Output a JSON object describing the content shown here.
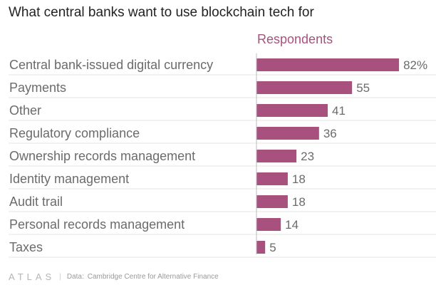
{
  "title": "What central banks want to use blockchain tech for",
  "chart_data": {
    "type": "bar",
    "orientation": "horizontal",
    "series_label": "Respondents",
    "categories": [
      "Central bank-issued digital currency",
      "Payments",
      "Other",
      "Regulatory compliance",
      "Ownership records management",
      "Identity management",
      "Audit trail",
      "Personal records management",
      "Taxes"
    ],
    "values": [
      82,
      55,
      41,
      36,
      23,
      18,
      18,
      14,
      5
    ],
    "value_labels": [
      "82%",
      "55",
      "41",
      "36",
      "23",
      "18",
      "18",
      "14",
      "5"
    ],
    "xlim": [
      0,
      100
    ],
    "bar_color": "#a8517f",
    "grid": "horizontal"
  },
  "footer": {
    "logo": "ATLAS",
    "data_label": "Data:",
    "source": "Cambridge Centre for Alternative Finance"
  }
}
